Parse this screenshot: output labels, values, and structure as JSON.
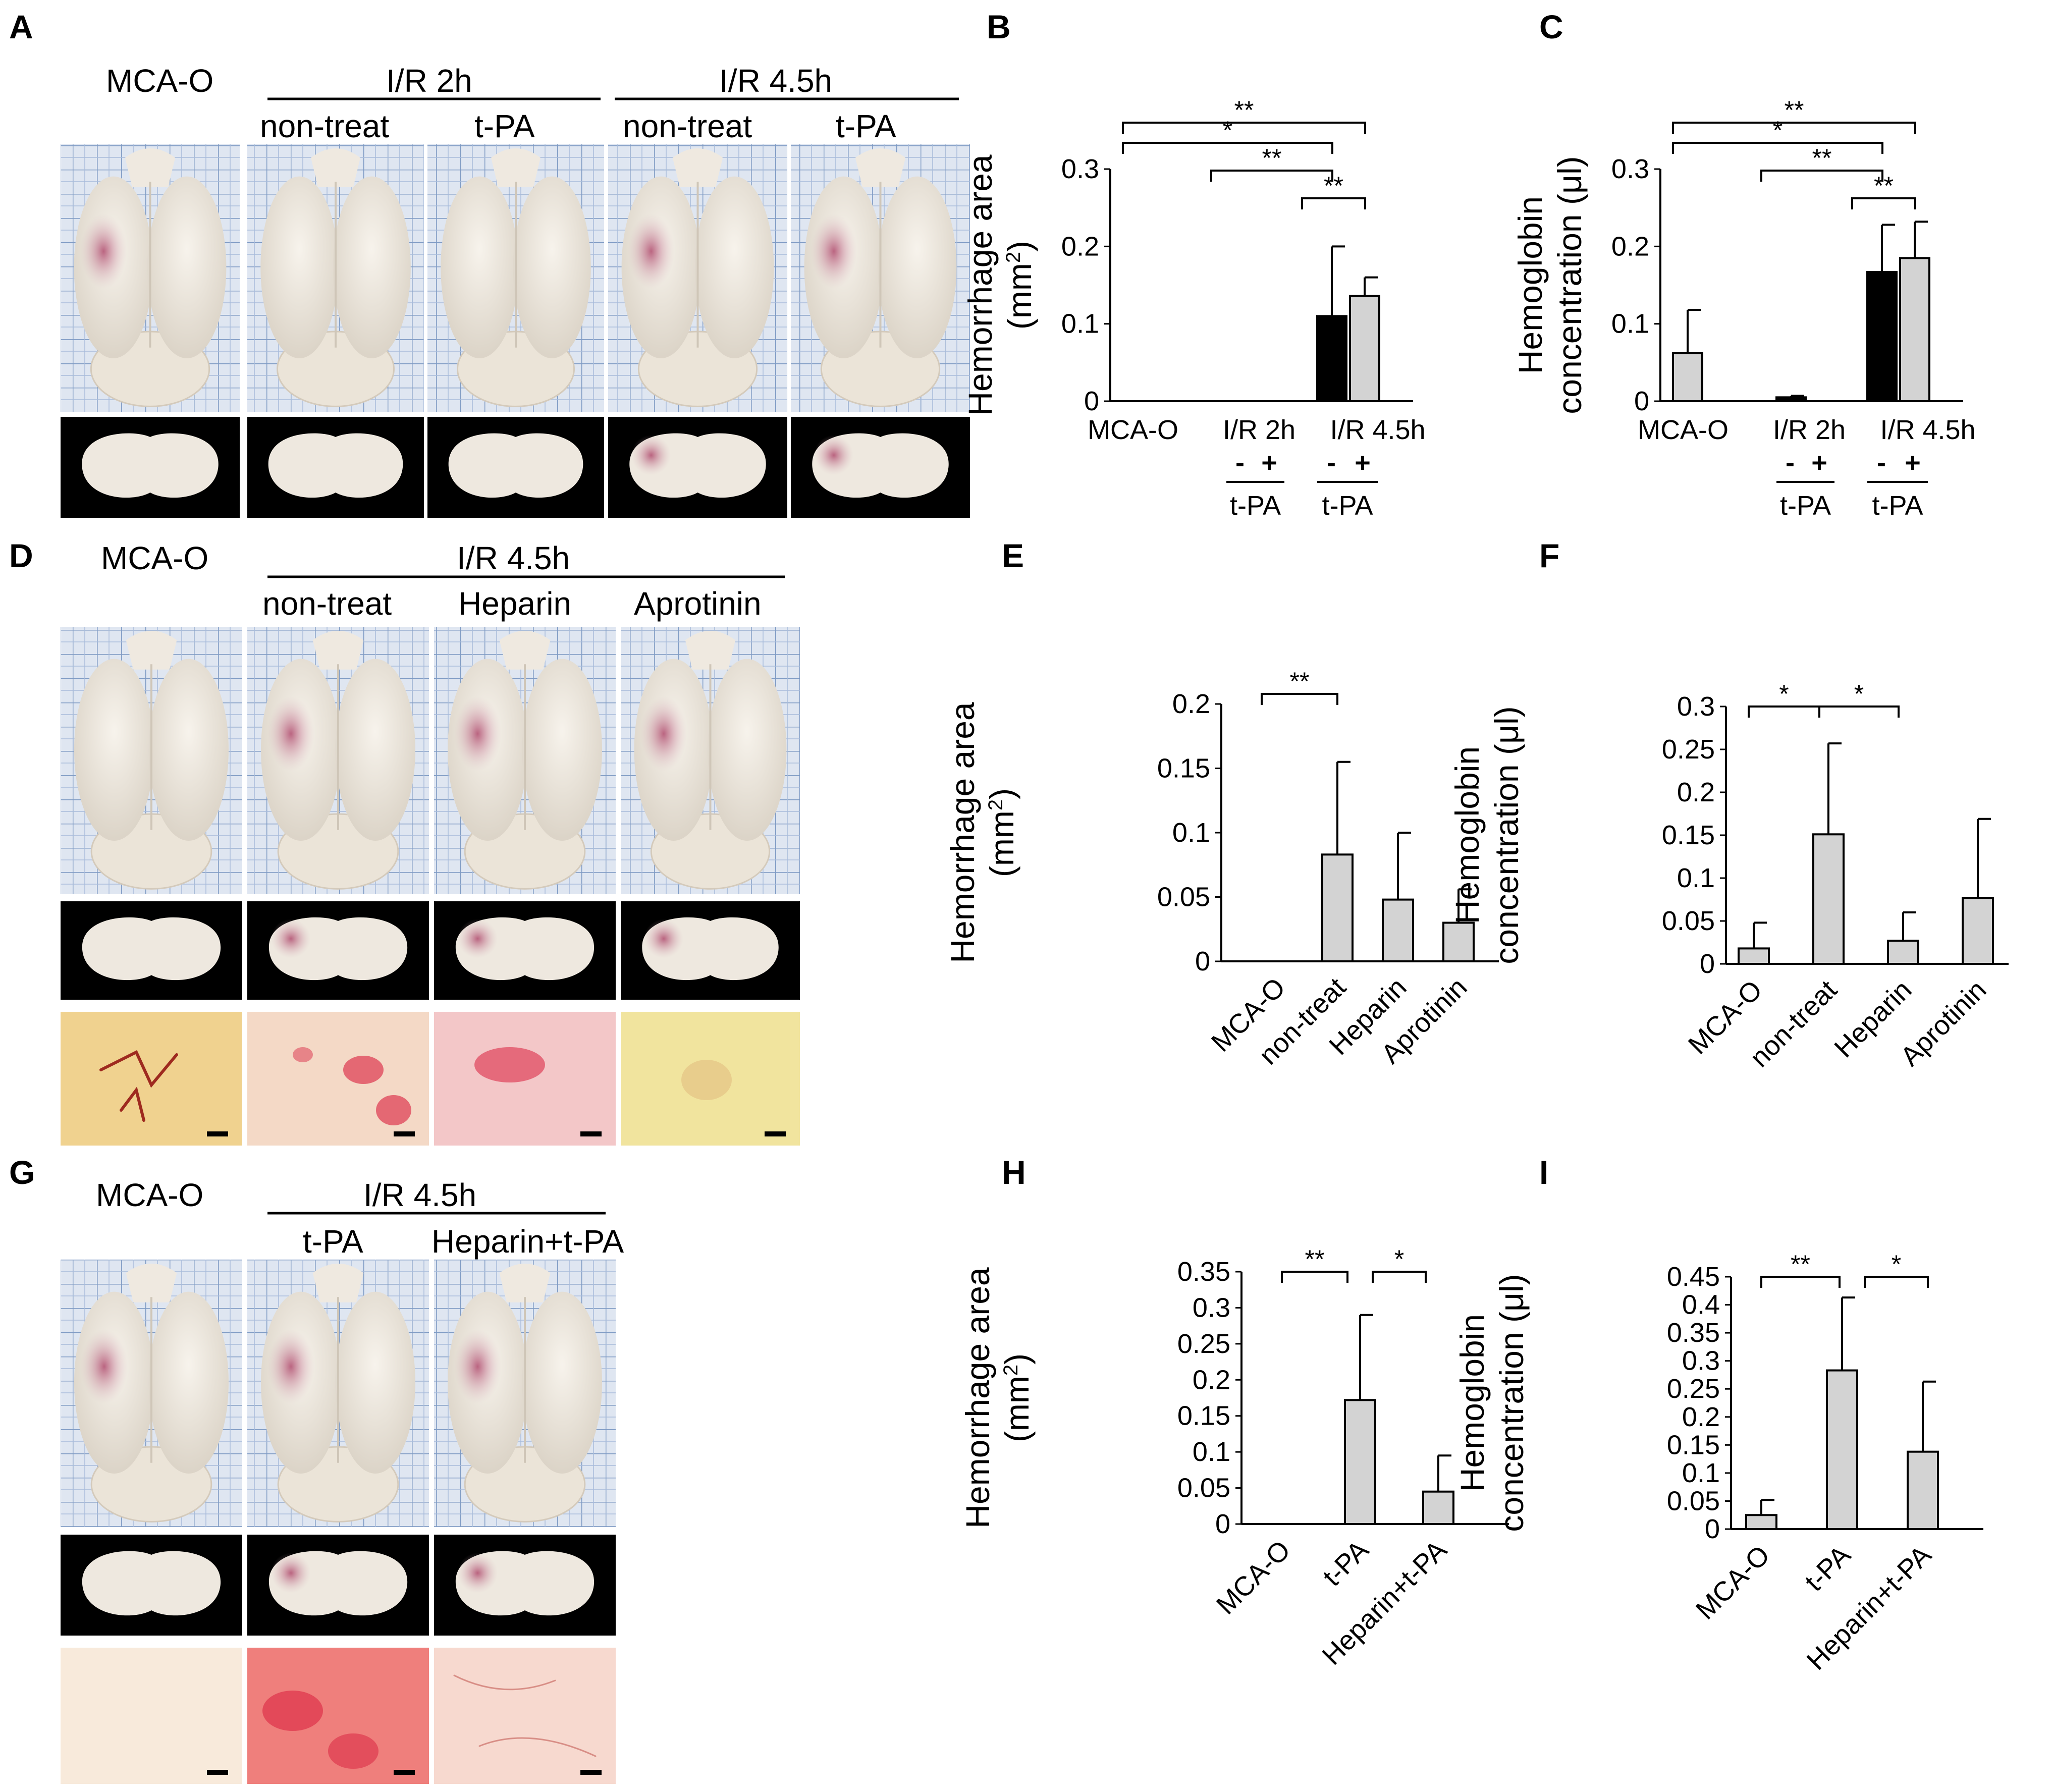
{
  "panel_letters": [
    "A",
    "B",
    "C",
    "D",
    "E",
    "F",
    "G",
    "H",
    "I"
  ],
  "photo_panels": [
    {
      "letter": "A",
      "top_labels": [
        "MCA-O",
        "I/R 2h",
        "I/R 4.5h"
      ],
      "column_labels": [
        "non-treat",
        "t-PA",
        "non-treat",
        "t-PA"
      ],
      "rows": [
        "whole brain (dorsal view)",
        "coronal section"
      ]
    },
    {
      "letter": "D",
      "top_labels": [
        "MCA-O",
        "I/R 4.5h"
      ],
      "column_labels": [
        "non-treat",
        "Heparin",
        "Aprotinin"
      ],
      "rows": [
        "whole brain (dorsal view)",
        "coronal section",
        "hemoglobin staining"
      ]
    },
    {
      "letter": "G",
      "top_labels": [
        "MCA-O",
        "I/R 4.5h"
      ],
      "column_labels": [
        "t-PA",
        "Heparin+t-PA"
      ],
      "rows": [
        "whole brain (dorsal view)",
        "coronal section",
        "hemoglobin staining"
      ]
    }
  ],
  "colors": {
    "bar_gray": "#d3d3d3",
    "bar_black": "#000000",
    "grid_paper": "#7f9bc4",
    "brain": "#efe9e0",
    "hemorrhage": "#b44a70",
    "stain_red": "#d81d3c",
    "stain_yellow": "#f1e49e"
  },
  "chart_data": [
    {
      "id": "B",
      "type": "bar",
      "ylabel_line1": "Hemorrhage area",
      "ylabel_line2": "(mm",
      "ylabel_sup": "2",
      "ylabel_close": ")",
      "ylim": [
        0,
        0.3
      ],
      "yticks": [
        "0",
        "0.1",
        "0.2",
        "0.3"
      ],
      "groups": [
        "MCA-O",
        "I/R 2h",
        "I/R 4.5h"
      ],
      "sub_labels": [
        "-",
        "+",
        "-",
        "+"
      ],
      "treatment_label": "t-PA",
      "bars": [
        {
          "group": "MCA-O",
          "value": 0,
          "error": 0,
          "fill": "gray"
        },
        {
          "group": "I/R 2h",
          "value": 0,
          "error": 0,
          "fill": "black"
        },
        {
          "group": "I/R 2h",
          "value": 0,
          "error": 0,
          "fill": "gray"
        },
        {
          "group": "I/R 4.5h",
          "value": 0.11,
          "error": 0.09,
          "fill": "black"
        },
        {
          "group": "I/R 4.5h",
          "value": 0.136,
          "error": 0.024,
          "fill": "gray"
        }
      ],
      "significance": [
        "**",
        "*",
        "**",
        "**"
      ]
    },
    {
      "id": "C",
      "type": "bar",
      "ylabel_line1": "Hemoglobin",
      "ylabel_line2": "concentration (μl)",
      "ylim": [
        0,
        0.3
      ],
      "yticks": [
        "0",
        "0.1",
        "0.2",
        "0.3"
      ],
      "groups": [
        "MCA-O",
        "I/R 2h",
        "I/R 4.5h"
      ],
      "sub_labels": [
        "-",
        "+",
        "-",
        "+"
      ],
      "treatment_label": "t-PA",
      "bars": [
        {
          "group": "MCA-O",
          "value": 0.062,
          "error": 0.056,
          "fill": "gray"
        },
        {
          "group": "I/R 2h",
          "value": 0.005,
          "error": 0.002,
          "fill": "black"
        },
        {
          "group": "I/R 2h",
          "value": 0,
          "error": 0,
          "fill": "gray"
        },
        {
          "group": "I/R 4.5h",
          "value": 0.167,
          "error": 0.061,
          "fill": "black"
        },
        {
          "group": "I/R 4.5h",
          "value": 0.185,
          "error": 0.047,
          "fill": "gray"
        }
      ],
      "significance": [
        "**",
        "*",
        "**",
        "**"
      ]
    },
    {
      "id": "E",
      "type": "bar",
      "ylabel_line1": "Hemorrhage area",
      "ylabel_line2": "(mm",
      "ylabel_sup": "2",
      "ylabel_close": ")",
      "ylim": [
        0,
        0.2
      ],
      "yticks": [
        "0",
        "0.05",
        "0.1",
        "0.15",
        "0.2"
      ],
      "categories": [
        "MCA-O",
        "non-treat",
        "Heparin",
        "Aprotinin"
      ],
      "values": [
        0,
        0.083,
        0.048,
        0.03
      ],
      "errors": [
        0,
        0.072,
        0.052,
        0.026
      ],
      "significance": [
        "**"
      ]
    },
    {
      "id": "F",
      "type": "bar",
      "ylabel_line1": "Hemoglobin",
      "ylabel_line2": "concentration (μl)",
      "ylim": [
        0,
        0.3
      ],
      "yticks": [
        "0",
        "0.05",
        "0.1",
        "0.15",
        "0.2",
        "0.25",
        "0.3"
      ],
      "categories": [
        "MCA-O",
        "non-treat",
        "Heparin",
        "Aprotinin"
      ],
      "values": [
        0.018,
        0.151,
        0.027,
        0.077
      ],
      "errors": [
        0.03,
        0.106,
        0.033,
        0.092
      ],
      "significance": [
        "*",
        "*"
      ]
    },
    {
      "id": "H",
      "type": "bar",
      "ylabel_line1": "Hemorrhage area",
      "ylabel_line2": "(mm",
      "ylabel_sup": "2",
      "ylabel_close": ")",
      "ylim": [
        0,
        0.35
      ],
      "yticks": [
        "0",
        "0.05",
        "0.1",
        "0.15",
        "0.2",
        "0.25",
        "0.3",
        "0.35"
      ],
      "categories": [
        "MCA-O",
        "t-PA",
        "Heparin+t-PA"
      ],
      "values": [
        0,
        0.172,
        0.045
      ],
      "errors": [
        0,
        0.118,
        0.05
      ],
      "significance": [
        "**",
        "*"
      ]
    },
    {
      "id": "I",
      "type": "bar",
      "ylabel_line1": "Hemoglobin",
      "ylabel_line2": "concentration (μl)",
      "ylim": [
        0,
        0.45
      ],
      "yticks": [
        "0",
        "0.05",
        "0.1",
        "0.15",
        "0.2",
        "0.25",
        "0.3",
        "0.35",
        "0.4",
        "0.45"
      ],
      "categories": [
        "MCA-O",
        "t-PA",
        "Heparin+t-PA"
      ],
      "values": [
        0.025,
        0.283,
        0.138
      ],
      "errors": [
        0.027,
        0.13,
        0.125
      ],
      "significance": [
        "**",
        "*"
      ]
    }
  ]
}
